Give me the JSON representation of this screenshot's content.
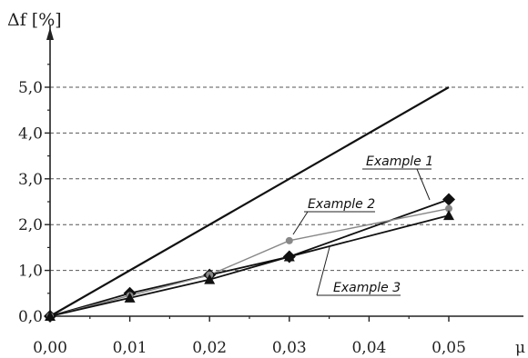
{
  "chart_data": {
    "type": "line",
    "ylabel": "Δf [%]",
    "xlabel": "μ",
    "xlim": [
      0,
      0.05
    ],
    "ylim": [
      0,
      5.0
    ],
    "x_ticks": [
      "0,00",
      "0,01",
      "0,02",
      "0,03",
      "0,04",
      "0,05"
    ],
    "y_ticks": [
      "0,0",
      "1,0",
      "2,0",
      "3,0",
      "4,0",
      "5,0"
    ],
    "grid": "horizontal-dashed",
    "x": [
      0,
      0.01,
      0.02,
      0.03,
      0.05
    ],
    "reference_line": {
      "x": [
        0,
        0.05
      ],
      "y": [
        0,
        5.0
      ],
      "color": "#111111"
    },
    "series": [
      {
        "name": "Example 1",
        "values": [
          0,
          0.5,
          0.9,
          1.3,
          2.55
        ],
        "marker": "diamond",
        "color": "#111111"
      },
      {
        "name": "Example 2",
        "values": [
          0,
          0.45,
          0.9,
          1.65,
          2.35
        ],
        "marker": "circle",
        "color": "#888888"
      },
      {
        "name": "Example 3",
        "values": [
          0,
          0.4,
          0.8,
          1.3,
          2.2
        ],
        "marker": "triangle",
        "color": "#111111"
      }
    ],
    "annotations": [
      "Example 1",
      "Example 2",
      "Example 3"
    ]
  }
}
